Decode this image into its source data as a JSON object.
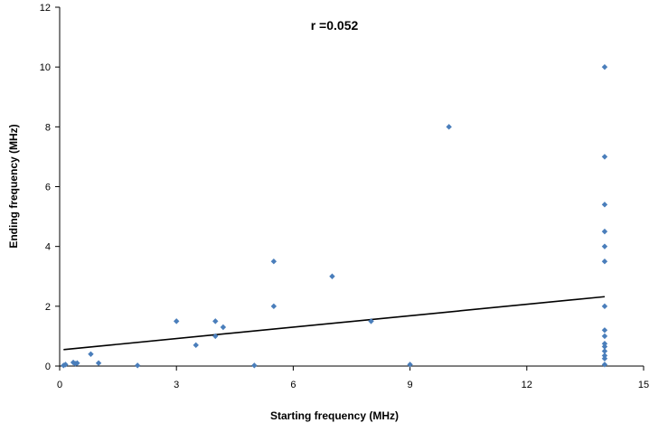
{
  "chart_data": {
    "type": "scatter",
    "title": "",
    "annotation": "r =0.052",
    "xlabel": "Starting frequency (MHz)",
    "ylabel": "Ending frequency (MHz)",
    "xlim": [
      0,
      15
    ],
    "ylim": [
      0,
      12
    ],
    "xticks": [
      0,
      3,
      6,
      9,
      12,
      15
    ],
    "yticks": [
      0,
      2,
      4,
      6,
      8,
      10,
      12
    ],
    "marker_color": "#4a7ebb",
    "trendline": {
      "x": [
        0.1,
        14
      ],
      "y": [
        0.55,
        2.32
      ],
      "color": "#000000"
    },
    "points": [
      {
        "x": 0.1,
        "y": 0.02
      },
      {
        "x": 0.15,
        "y": 0.05
      },
      {
        "x": 0.35,
        "y": 0.12
      },
      {
        "x": 0.4,
        "y": 0.08
      },
      {
        "x": 0.45,
        "y": 0.1
      },
      {
        "x": 0.8,
        "y": 0.4
      },
      {
        "x": 1.0,
        "y": 0.1
      },
      {
        "x": 2.0,
        "y": 0.02
      },
      {
        "x": 3.0,
        "y": 1.5
      },
      {
        "x": 3.5,
        "y": 0.7
      },
      {
        "x": 4.0,
        "y": 1.5
      },
      {
        "x": 4.0,
        "y": 1.0
      },
      {
        "x": 4.2,
        "y": 1.3
      },
      {
        "x": 5.0,
        "y": 0.02
      },
      {
        "x": 5.5,
        "y": 3.5
      },
      {
        "x": 5.5,
        "y": 2.0
      },
      {
        "x": 7.0,
        "y": 3.0
      },
      {
        "x": 8.0,
        "y": 1.5
      },
      {
        "x": 9.0,
        "y": 0.05
      },
      {
        "x": 10.0,
        "y": 8.0
      },
      {
        "x": 14.0,
        "y": 10.0
      },
      {
        "x": 14.0,
        "y": 7.0
      },
      {
        "x": 14.0,
        "y": 5.4
      },
      {
        "x": 14.0,
        "y": 4.5
      },
      {
        "x": 14.0,
        "y": 4.0
      },
      {
        "x": 14.0,
        "y": 3.5
      },
      {
        "x": 14.0,
        "y": 2.0
      },
      {
        "x": 14.0,
        "y": 1.2
      },
      {
        "x": 14.0,
        "y": 1.0
      },
      {
        "x": 14.0,
        "y": 0.75
      },
      {
        "x": 14.0,
        "y": 0.65
      },
      {
        "x": 14.0,
        "y": 0.5
      },
      {
        "x": 14.0,
        "y": 0.35
      },
      {
        "x": 14.0,
        "y": 0.25
      },
      {
        "x": 14.0,
        "y": 0.05
      }
    ]
  }
}
